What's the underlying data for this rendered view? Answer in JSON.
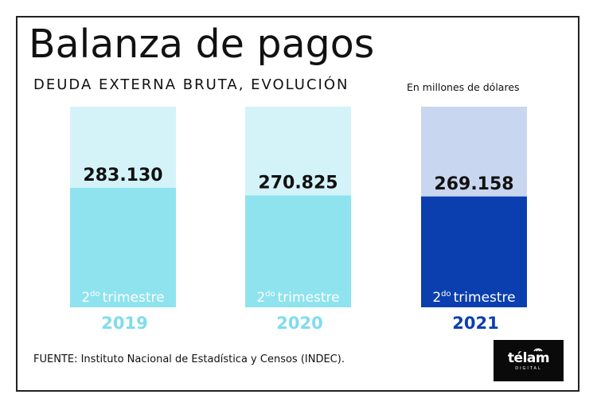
{
  "header": {
    "title": "Balanza de pagos",
    "subtitle": "DEUDA EXTERNA BRUTA, EVOLUCIÓN",
    "units": "En millones de dólares"
  },
  "footer": {
    "source": "FUENTE: Instituto Nacional de Estadística y Censos (INDEC).",
    "logo_text": "télam",
    "logo_sub": "DIGITAL"
  },
  "chart_data": {
    "type": "bar",
    "title": "Balanza de pagos",
    "subtitle": "DEUDA EXTERNA BRUTA, EVOLUCIÓN",
    "ylabel": "En millones de dólares",
    "categories": [
      "2019",
      "2020",
      "2021"
    ],
    "values": [
      283130,
      270825,
      269158
    ],
    "value_labels": [
      "283.130",
      "270.825",
      "269.158"
    ],
    "period_sup": "do",
    "period_base": "2",
    "period_word": "trimestre",
    "colors": {
      "bar": [
        "#8ee3ef",
        "#8ee3ef",
        "#0b3fb0"
      ],
      "bar_bg": [
        "#d3f3f9",
        "#d3f3f9",
        "#c9d6ef"
      ],
      "year": [
        "#7fdced",
        "#7fdced",
        "#0b3fb0"
      ]
    }
  }
}
